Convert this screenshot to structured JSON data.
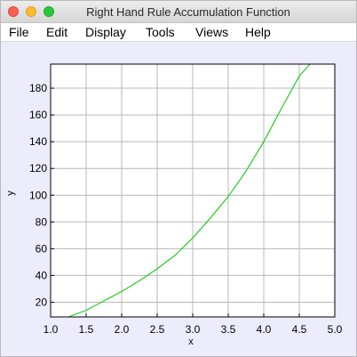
{
  "window": {
    "title": "Right Hand Rule Accumulation Function"
  },
  "menu": [
    "File",
    "Edit",
    "Display",
    "Tools",
    "Views",
    "Help"
  ],
  "chart_data": {
    "type": "line",
    "title": "",
    "xlabel": "x",
    "ylabel": "y",
    "xlim": [
      1.0,
      5.0
    ],
    "ylim": [
      9,
      198
    ],
    "xticks": [
      "1.0",
      "1.5",
      "2.0",
      "2.5",
      "3.0",
      "3.5",
      "4.0",
      "4.5",
      "5.0"
    ],
    "yticks": [
      "20",
      "40",
      "60",
      "80",
      "100",
      "120",
      "140",
      "160",
      "180"
    ],
    "grid": true,
    "series": [
      {
        "color": "#22cc22",
        "x": [
          1.25,
          1.5,
          1.75,
          2.0,
          2.25,
          2.5,
          2.75,
          3.0,
          3.25,
          3.5,
          3.75,
          4.0,
          4.25,
          4.5,
          4.65
        ],
        "y": [
          9,
          14,
          21,
          28,
          36,
          45,
          55,
          68,
          83,
          99,
          118,
          140,
          165,
          189,
          198
        ]
      }
    ]
  }
}
